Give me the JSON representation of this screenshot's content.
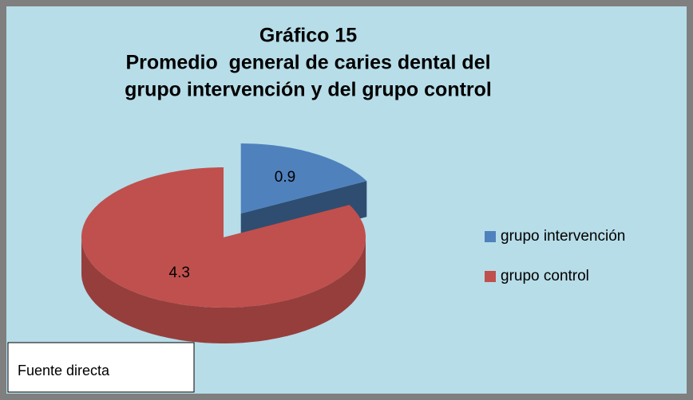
{
  "chart_data": {
    "type": "pie",
    "title": [
      "Gráfico 15",
      "Promedio  general de caries dental del",
      "grupo intervención y del grupo control"
    ],
    "categories": [
      "grupo intervención",
      "grupo control"
    ],
    "values": [
      0.9,
      4.3
    ],
    "colors": [
      "#4f81bd",
      "#c0504d"
    ],
    "legend": "right",
    "annotation": "Fuente directa"
  }
}
